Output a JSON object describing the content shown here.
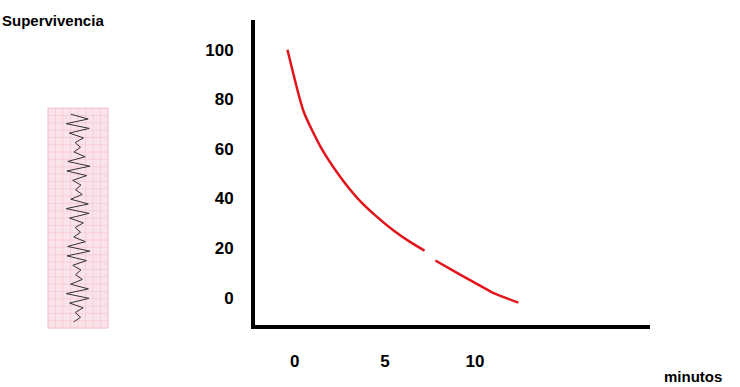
{
  "chart_data": {
    "type": "line",
    "ylabel": "Supervivencia",
    "xlabel": "minutos",
    "x": [
      -0.4,
      0.5,
      1.5,
      2.5,
      3.5,
      4.5,
      5.5,
      6.5,
      7.2,
      7.5,
      7.8,
      9,
      10,
      11,
      12.4
    ],
    "values": [
      100,
      75,
      60,
      49,
      40,
      33,
      27,
      22,
      19,
      null,
      15,
      10,
      6,
      2,
      -2
    ],
    "color": "#e3141b",
    "xlim": [
      -2.2,
      19.7
    ],
    "ylim": [
      -11,
      112
    ],
    "xticks": [
      0,
      5,
      10
    ],
    "yticks": [
      0,
      20,
      40,
      60,
      80,
      100
    ],
    "grid": false
  }
}
